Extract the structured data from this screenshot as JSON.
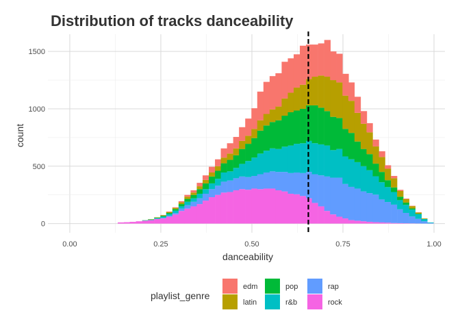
{
  "chart_data": {
    "type": "bar",
    "subtype": "stacked-histogram",
    "title": "Distribution of tracks danceability",
    "xlabel": "danceability",
    "ylabel": "count",
    "xlim": [
      -0.06,
      1.03
    ],
    "ylim": [
      -80,
      1650
    ],
    "x_ticks": [
      "0.00",
      "0.25",
      "0.50",
      "0.75",
      "1.00"
    ],
    "x_tick_values": [
      0,
      0.25,
      0.5,
      0.75,
      1.0
    ],
    "y_ticks": [
      "0",
      "500",
      "1000",
      "1500"
    ],
    "y_tick_values": [
      0,
      500,
      1000,
      1500
    ],
    "grid": true,
    "bin_width": 0.0167,
    "bin_centers": [
      0.14,
      0.157,
      0.173,
      0.19,
      0.207,
      0.223,
      0.24,
      0.257,
      0.273,
      0.29,
      0.307,
      0.323,
      0.34,
      0.357,
      0.373,
      0.39,
      0.407,
      0.423,
      0.44,
      0.457,
      0.473,
      0.49,
      0.507,
      0.523,
      0.54,
      0.557,
      0.573,
      0.59,
      0.607,
      0.623,
      0.64,
      0.657,
      0.673,
      0.69,
      0.707,
      0.723,
      0.74,
      0.757,
      0.773,
      0.79,
      0.807,
      0.823,
      0.84,
      0.857,
      0.873,
      0.89,
      0.907,
      0.923,
      0.94,
      0.957,
      0.973,
      0.99
    ],
    "reference_line": {
      "x": 0.655,
      "style": "dashed"
    },
    "legend_title": "playlist_genre",
    "legend_position": "bottom",
    "series": [
      {
        "name": "rock",
        "color": "#F564E3",
        "values": [
          10,
          12,
          15,
          20,
          25,
          30,
          40,
          45,
          60,
          80,
          110,
          130,
          150,
          170,
          200,
          230,
          250,
          270,
          275,
          290,
          300,
          295,
          305,
          300,
          305,
          305,
          290,
          280,
          260,
          255,
          240,
          220,
          180,
          150,
          110,
          80,
          60,
          45,
          30,
          25,
          20,
          15,
          12,
          10,
          8,
          5,
          4,
          3,
          2,
          1,
          0,
          0
        ]
      },
      {
        "name": "rap",
        "color": "#619CFF",
        "values": [
          0,
          0,
          0,
          0,
          0,
          0,
          2,
          5,
          8,
          12,
          20,
          30,
          40,
          50,
          60,
          70,
          80,
          95,
          100,
          105,
          110,
          110,
          110,
          130,
          140,
          150,
          160,
          170,
          180,
          190,
          200,
          230,
          250,
          270,
          300,
          320,
          340,
          300,
          290,
          280,
          260,
          250,
          240,
          200,
          180,
          160,
          120,
          90,
          60,
          40,
          20,
          5
        ]
      },
      {
        "name": "r&b",
        "color": "#00BFC4",
        "values": [
          0,
          0,
          0,
          0,
          2,
          3,
          5,
          10,
          15,
          20,
          20,
          30,
          30,
          40,
          40,
          50,
          60,
          80,
          80,
          90,
          110,
          140,
          160,
          180,
          190,
          200,
          200,
          220,
          240,
          250,
          260,
          270,
          270,
          270,
          270,
          240,
          250,
          240,
          240,
          230,
          220,
          200,
          160,
          150,
          130,
          110,
          80,
          70,
          60,
          40,
          20,
          5
        ]
      },
      {
        "name": "pop",
        "color": "#00BA38",
        "values": [
          0,
          0,
          0,
          0,
          2,
          3,
          5,
          8,
          10,
          15,
          20,
          25,
          30,
          40,
          50,
          60,
          70,
          80,
          100,
          110,
          130,
          150,
          170,
          200,
          220,
          230,
          250,
          270,
          290,
          290,
          300,
          310,
          330,
          320,
          300,
          290,
          270,
          240,
          230,
          180,
          150,
          140,
          110,
          90,
          60,
          40,
          30,
          20,
          10,
          5,
          0,
          0
        ]
      },
      {
        "name": "latin",
        "color": "#B79F00",
        "values": [
          0,
          0,
          0,
          0,
          0,
          2,
          3,
          5,
          8,
          10,
          15,
          20,
          20,
          25,
          30,
          35,
          40,
          50,
          55,
          60,
          70,
          70,
          80,
          90,
          100,
          110,
          120,
          150,
          170,
          200,
          210,
          230,
          250,
          280,
          300,
          320,
          310,
          290,
          280,
          250,
          220,
          190,
          150,
          130,
          100,
          80,
          50,
          30,
          20,
          10,
          5,
          0
        ]
      },
      {
        "name": "edm",
        "color": "#F8766D",
        "values": [
          0,
          0,
          0,
          0,
          0,
          0,
          0,
          2,
          4,
          5,
          10,
          15,
          20,
          30,
          40,
          50,
          60,
          80,
          90,
          100,
          120,
          150,
          180,
          250,
          280,
          290,
          290,
          320,
          300,
          290,
          340,
          300,
          280,
          280,
          320,
          250,
          250,
          190,
          160,
          140,
          110,
          80,
          60,
          50,
          30,
          20,
          10,
          5,
          3,
          2,
          0,
          0
        ]
      }
    ]
  },
  "legend": {
    "title": "playlist_genre",
    "items": [
      {
        "name": "edm",
        "color": "#F8766D"
      },
      {
        "name": "latin",
        "color": "#B79F00"
      },
      {
        "name": "pop",
        "color": "#00BA38"
      },
      {
        "name": "r&b",
        "color": "#00BFC4"
      },
      {
        "name": "rap",
        "color": "#619CFF"
      },
      {
        "name": "rock",
        "color": "#F564E3"
      }
    ]
  }
}
